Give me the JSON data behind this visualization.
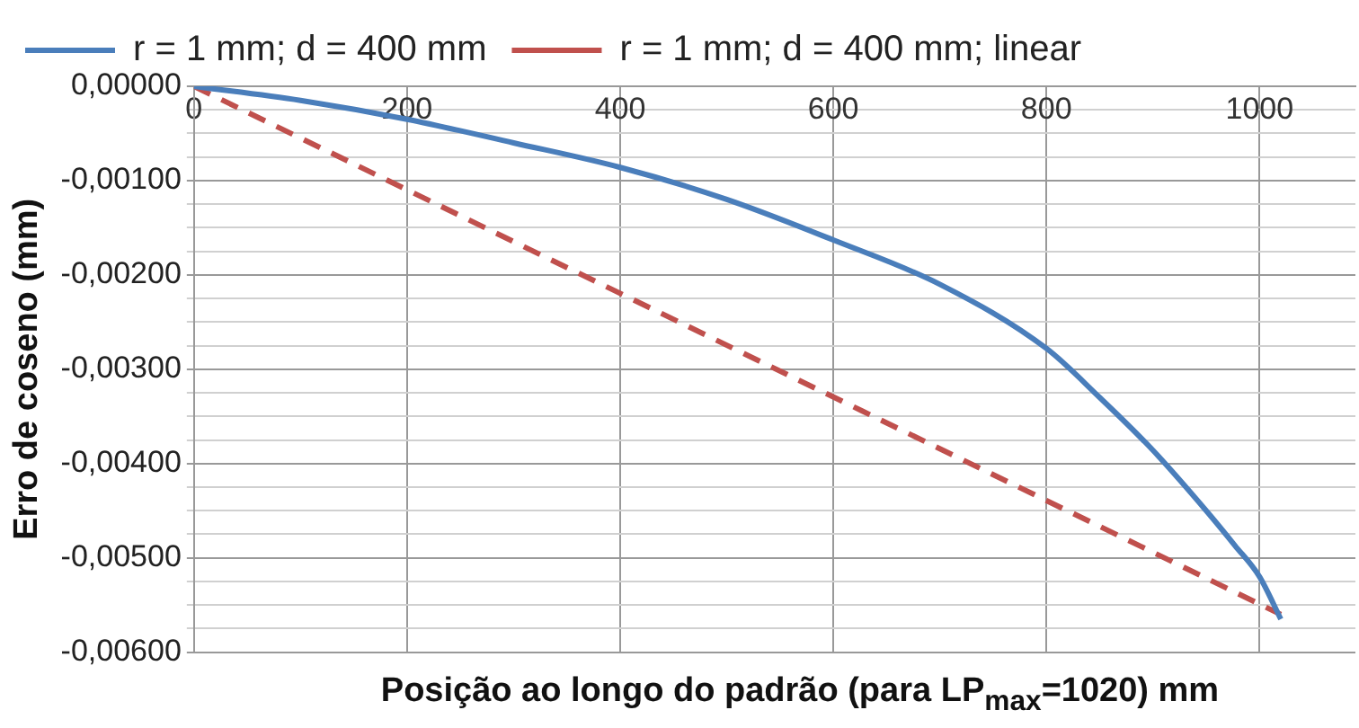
{
  "chart_data": {
    "type": "line",
    "xlabel": "Posição ao longo do padrão (para LP$_{max}$=1020) mm",
    "ylabel": "Erro de coseno (mm)",
    "series": [
      {
        "name": "r = 1 mm; d = 400 mm",
        "color": "#4a7ebb",
        "line_style": "solid",
        "x": [
          0,
          100,
          200,
          300,
          400,
          500,
          600,
          700,
          800,
          850,
          900,
          950,
          977,
          1000,
          1020
        ],
        "values": [
          0,
          -0.00015,
          -0.00035,
          -0.0006,
          -0.00086,
          -0.0012,
          -0.00163,
          -0.0021,
          -0.00278,
          -0.0033,
          -0.00386,
          -0.0045,
          -0.00487,
          -0.0052,
          -0.00565
        ]
      },
      {
        "name": "r = 1 mm; d = 400 mm; linear",
        "color": "#c0504d",
        "line_style": "dashed",
        "x": [
          0,
          1020
        ],
        "values": [
          0,
          -0.0056
        ]
      }
    ],
    "xlim": [
      0,
      1090
    ],
    "xticks": [
      0,
      200,
      400,
      600,
      800,
      1000
    ],
    "ylim": [
      -0.006,
      0
    ],
    "yticks": [
      {
        "value": 0,
        "label": "0,00000"
      },
      {
        "value": -0.00025,
        "label": null
      },
      {
        "value": -0.0005,
        "label": null
      },
      {
        "value": -0.00075,
        "label": null
      },
      {
        "value": -0.001,
        "label": "-0,00100"
      },
      {
        "value": -0.00125,
        "label": null
      },
      {
        "value": -0.0015,
        "label": null
      },
      {
        "value": -0.00175,
        "label": null
      },
      {
        "value": -0.002,
        "label": "-0,00200"
      },
      {
        "value": -0.00225,
        "label": null
      },
      {
        "value": -0.0025,
        "label": null
      },
      {
        "value": -0.00275,
        "label": null
      },
      {
        "value": -0.003,
        "label": "-0,00300"
      },
      {
        "value": -0.00325,
        "label": null
      },
      {
        "value": -0.0035,
        "label": null
      },
      {
        "value": -0.00375,
        "label": null
      },
      {
        "value": -0.004,
        "label": "-0,00400"
      },
      {
        "value": -0.00425,
        "label": null
      },
      {
        "value": -0.0045,
        "label": null
      },
      {
        "value": -0.00475,
        "label": null
      },
      {
        "value": -0.005,
        "label": "-0,00500"
      },
      {
        "value": -0.00525,
        "label": null
      },
      {
        "value": -0.0055,
        "label": null
      },
      {
        "value": -0.00575,
        "label": null
      },
      {
        "value": -0.006,
        "label": "-0,00600"
      }
    ],
    "grid": true,
    "legend": "top",
    "marker": "none"
  }
}
